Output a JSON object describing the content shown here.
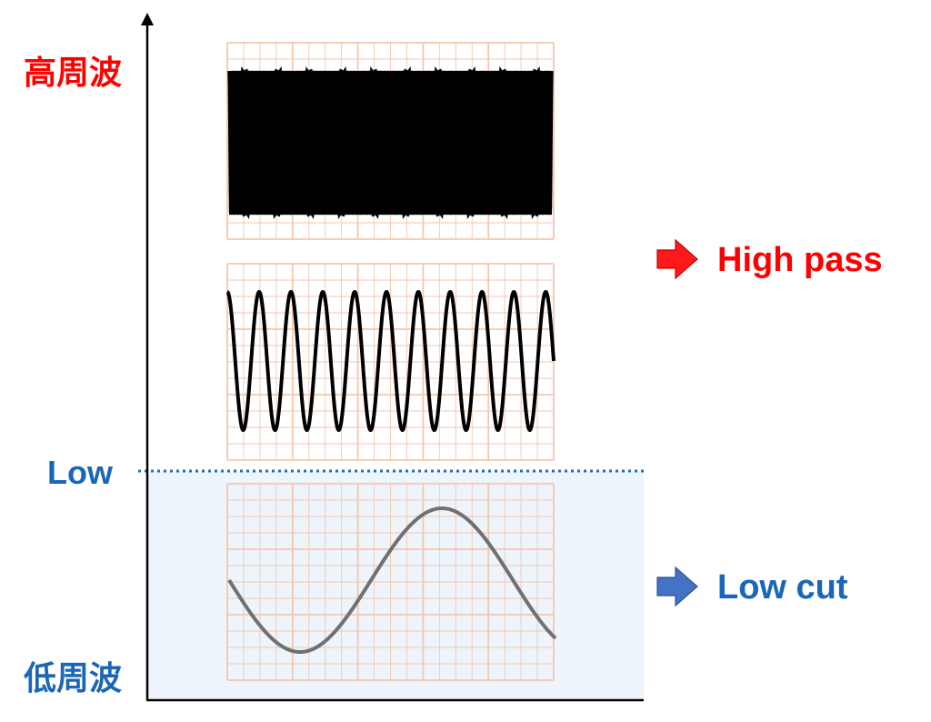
{
  "axis_labels": {
    "top": "高周波",
    "bottom": "低周波"
  },
  "threshold": {
    "label": "Low",
    "color": "#1f6fb8"
  },
  "callouts": {
    "high_pass": {
      "label": "High pass",
      "color": "#ff0000",
      "arrow_color": "#ff1a1a"
    },
    "low_cut": {
      "label": "Low cut",
      "color": "#1a66b8",
      "arrow_color": "#4472c4"
    }
  },
  "colors": {
    "high_label": "#ff0000",
    "low_label": "#1a66b8",
    "grid_line": "#f4c7ad",
    "low_region_fill": "#edf4fb",
    "wave_dark": "#000000",
    "wave_low": "#707070"
  },
  "waves": [
    {
      "name": "high-frequency-wave",
      "cycles": 95
    },
    {
      "name": "mid-frequency-wave",
      "cycles": 10.25
    },
    {
      "name": "low-frequency-wave",
      "cycles": 1.15
    }
  ]
}
